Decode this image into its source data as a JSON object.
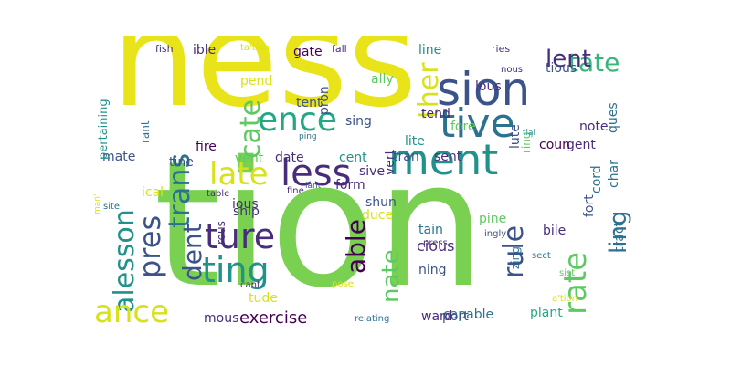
{
  "palette": {
    "lime": "#7ad151",
    "yellow": "#e8e419",
    "teal": "#21918c",
    "blue": "#2c728e",
    "indigo": "#3b528b",
    "purple": "#472d7b",
    "dark": "#440154",
    "green": "#22a884",
    "lightgreen": "#5ec962",
    "paleyellow": "#d8e219",
    "mint": "#35b779"
  },
  "words": [
    {
      "t": "tion",
      "c": "lime"
    },
    {
      "t": "ness",
      "c": "yellow"
    },
    {
      "t": "ment",
      "c": "teal"
    },
    {
      "t": "sion",
      "c": "indigo"
    },
    {
      "t": "tive",
      "c": "blue"
    },
    {
      "t": "less",
      "c": "purple"
    },
    {
      "t": "late",
      "c": "paleyellow"
    },
    {
      "t": "ence",
      "c": "green"
    },
    {
      "t": "ture",
      "c": "purple"
    },
    {
      "t": "ting",
      "c": "teal"
    },
    {
      "t": "trans",
      "c": "blue"
    },
    {
      "t": "alesson",
      "c": "teal"
    },
    {
      "t": "ance",
      "c": "paleyellow"
    },
    {
      "t": "pres",
      "c": "indigo"
    },
    {
      "t": "cate",
      "c": "lightgreen"
    },
    {
      "t": "dent",
      "c": "indigo"
    },
    {
      "t": "able",
      "c": "dark"
    },
    {
      "t": "nate",
      "c": "lightgreen"
    },
    {
      "t": "rule",
      "c": "indigo"
    },
    {
      "t": "rate",
      "c": "lightgreen"
    },
    {
      "t": "ling",
      "c": "blue"
    },
    {
      "t": "tate",
      "c": "mint"
    },
    {
      "t": "ther",
      "c": "paleyellow"
    },
    {
      "t": "lent",
      "c": "purple"
    },
    {
      "t": "exercise",
      "c": "dark"
    },
    {
      "t": "capable",
      "c": "blue"
    },
    {
      "t": "plant",
      "c": "green"
    },
    {
      "t": "port",
      "c": "indigo"
    },
    {
      "t": "ward",
      "c": "purple"
    },
    {
      "t": "mous",
      "c": "purple"
    },
    {
      "t": "tude",
      "c": "paleyellow"
    },
    {
      "t": "cious",
      "c": "purple"
    },
    {
      "t": "ning",
      "c": "indigo"
    },
    {
      "t": "tain",
      "c": "blue"
    },
    {
      "t": "pine",
      "c": "lightgreen"
    },
    {
      "t": "bile",
      "c": "purple"
    },
    {
      "t": "fort",
      "c": "indigo"
    },
    {
      "t": "tract",
      "c": "blue"
    },
    {
      "t": "cord",
      "c": "blue"
    },
    {
      "t": "char",
      "c": "blue"
    },
    {
      "t": "gent",
      "c": "purple"
    },
    {
      "t": "coun",
      "c": "dark"
    },
    {
      "t": "note",
      "c": "purple"
    },
    {
      "t": "ques",
      "c": "blue"
    },
    {
      "t": "tious",
      "c": "indigo"
    },
    {
      "t": "lous",
      "c": "purple"
    },
    {
      "t": "lute",
      "c": "indigo"
    },
    {
      "t": "ring",
      "c": "lightgreen"
    },
    {
      "t": "fore",
      "c": "lightgreen"
    },
    {
      "t": "tend",
      "c": "purple"
    },
    {
      "t": "line",
      "c": "teal"
    },
    {
      "t": "ally",
      "c": "lightgreen"
    },
    {
      "t": "gate",
      "c": "dark"
    },
    {
      "t": "pend",
      "c": "paleyellow"
    },
    {
      "t": "ible",
      "c": "purple"
    },
    {
      "t": "tent",
      "c": "indigo"
    },
    {
      "t": "pron",
      "c": "indigo"
    },
    {
      "t": "sing",
      "c": "indigo"
    },
    {
      "t": "lite",
      "c": "teal"
    },
    {
      "t": "tran",
      "c": "indigo"
    },
    {
      "t": "sent",
      "c": "purple"
    },
    {
      "t": "cent",
      "c": "teal"
    },
    {
      "t": "sive",
      "c": "purple"
    },
    {
      "t": "vert",
      "c": "purple"
    },
    {
      "t": "form",
      "c": "purple"
    },
    {
      "t": "shun",
      "c": "indigo"
    },
    {
      "t": "duce",
      "c": "paleyellow"
    },
    {
      "t": "fire",
      "c": "dark"
    },
    {
      "t": "vent",
      "c": "lightgreen"
    },
    {
      "t": "date",
      "c": "purple"
    },
    {
      "t": "mate",
      "c": "indigo"
    },
    {
      "t": "tine",
      "c": "indigo"
    },
    {
      "t": "ical",
      "c": "paleyellow"
    },
    {
      "t": "ious",
      "c": "purple"
    },
    {
      "t": "ship",
      "c": "purple"
    },
    {
      "t": "rous",
      "c": "purple"
    },
    {
      "t": "rant",
      "c": "blue"
    },
    {
      "t": "pertaining",
      "c": "teal"
    },
    {
      "t": "fish",
      "c": "purple"
    },
    {
      "t": "ta'tion",
      "c": "paleyellow"
    },
    {
      "t": "fall",
      "c": "purple"
    },
    {
      "t": "ries",
      "c": "purple"
    },
    {
      "t": "nous",
      "c": "purple"
    },
    {
      "t": "ping",
      "c": "blue"
    },
    {
      "t": "tial",
      "c": "teal"
    },
    {
      "t": "table",
      "c": "purple"
    },
    {
      "t": "fine",
      "c": "purple"
    },
    {
      "t": "lant",
      "c": "indigo"
    },
    {
      "t": "site",
      "c": "blue"
    },
    {
      "t": "man'",
      "c": "paleyellow"
    },
    {
      "t": "press",
      "c": "purple"
    },
    {
      "t": "ingly",
      "c": "indigo"
    },
    {
      "t": "zing",
      "c": "blue"
    },
    {
      "t": "sect",
      "c": "blue"
    },
    {
      "t": "sist",
      "c": "lightgreen"
    },
    {
      "t": "a'tion",
      "c": "paleyellow"
    },
    {
      "t": "cant",
      "c": "purple"
    },
    {
      "t": "pose",
      "c": "paleyellow"
    },
    {
      "t": "relating",
      "c": "blue"
    }
  ]
}
